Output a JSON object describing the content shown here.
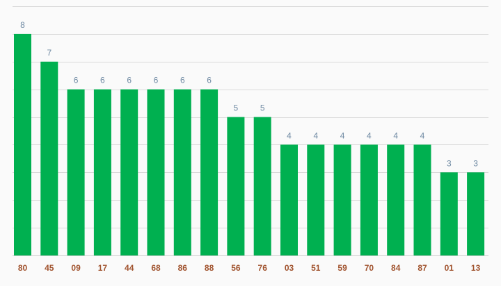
{
  "colors": {
    "background": "#fafafa",
    "bar": "#00b050",
    "grid": "#d9d9d9",
    "axis": "#cccccc",
    "value_label": "#6f8aa3",
    "x_label": "#a0522d"
  },
  "chart_data": {
    "type": "bar",
    "title": "",
    "xlabel": "",
    "ylabel": "",
    "categories": [
      "80",
      "45",
      "09",
      "17",
      "44",
      "68",
      "86",
      "88",
      "56",
      "76",
      "03",
      "51",
      "59",
      "70",
      "84",
      "87",
      "01",
      "13"
    ],
    "values": [
      8,
      7,
      6,
      6,
      6,
      6,
      6,
      6,
      5,
      5,
      4,
      4,
      4,
      4,
      4,
      4,
      3,
      3
    ],
    "ylim": [
      0,
      9
    ],
    "grid": true,
    "legend": "none",
    "data_labels": true
  }
}
